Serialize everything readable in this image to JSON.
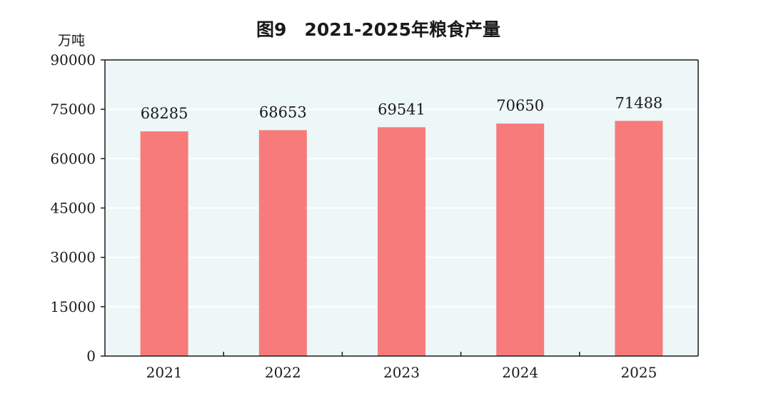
{
  "chart_data": {
    "type": "bar",
    "title": "图9　2021-2025年粮食产量",
    "ylabel": "万吨",
    "xlabel": "",
    "categories": [
      "2021",
      "2022",
      "2023",
      "2024",
      "2025"
    ],
    "values": [
      68285,
      68653,
      69541,
      70650,
      71488
    ],
    "value_labels": [
      "68285",
      "68653",
      "69541",
      "70650",
      "71488"
    ],
    "ylim": [
      0,
      90000
    ],
    "yticks": [
      0,
      15000,
      30000,
      45000,
      60000,
      75000,
      90000
    ],
    "ytick_labels": [
      "0",
      "15000",
      "30000",
      "45000",
      "60000",
      "75000",
      "90000"
    ],
    "grid": true,
    "legend": "none",
    "colors": {
      "bar": "#f77b7b",
      "plot_background": "#edf7f8",
      "grid": "#ffffff",
      "axis": "#1a1a1a"
    }
  }
}
